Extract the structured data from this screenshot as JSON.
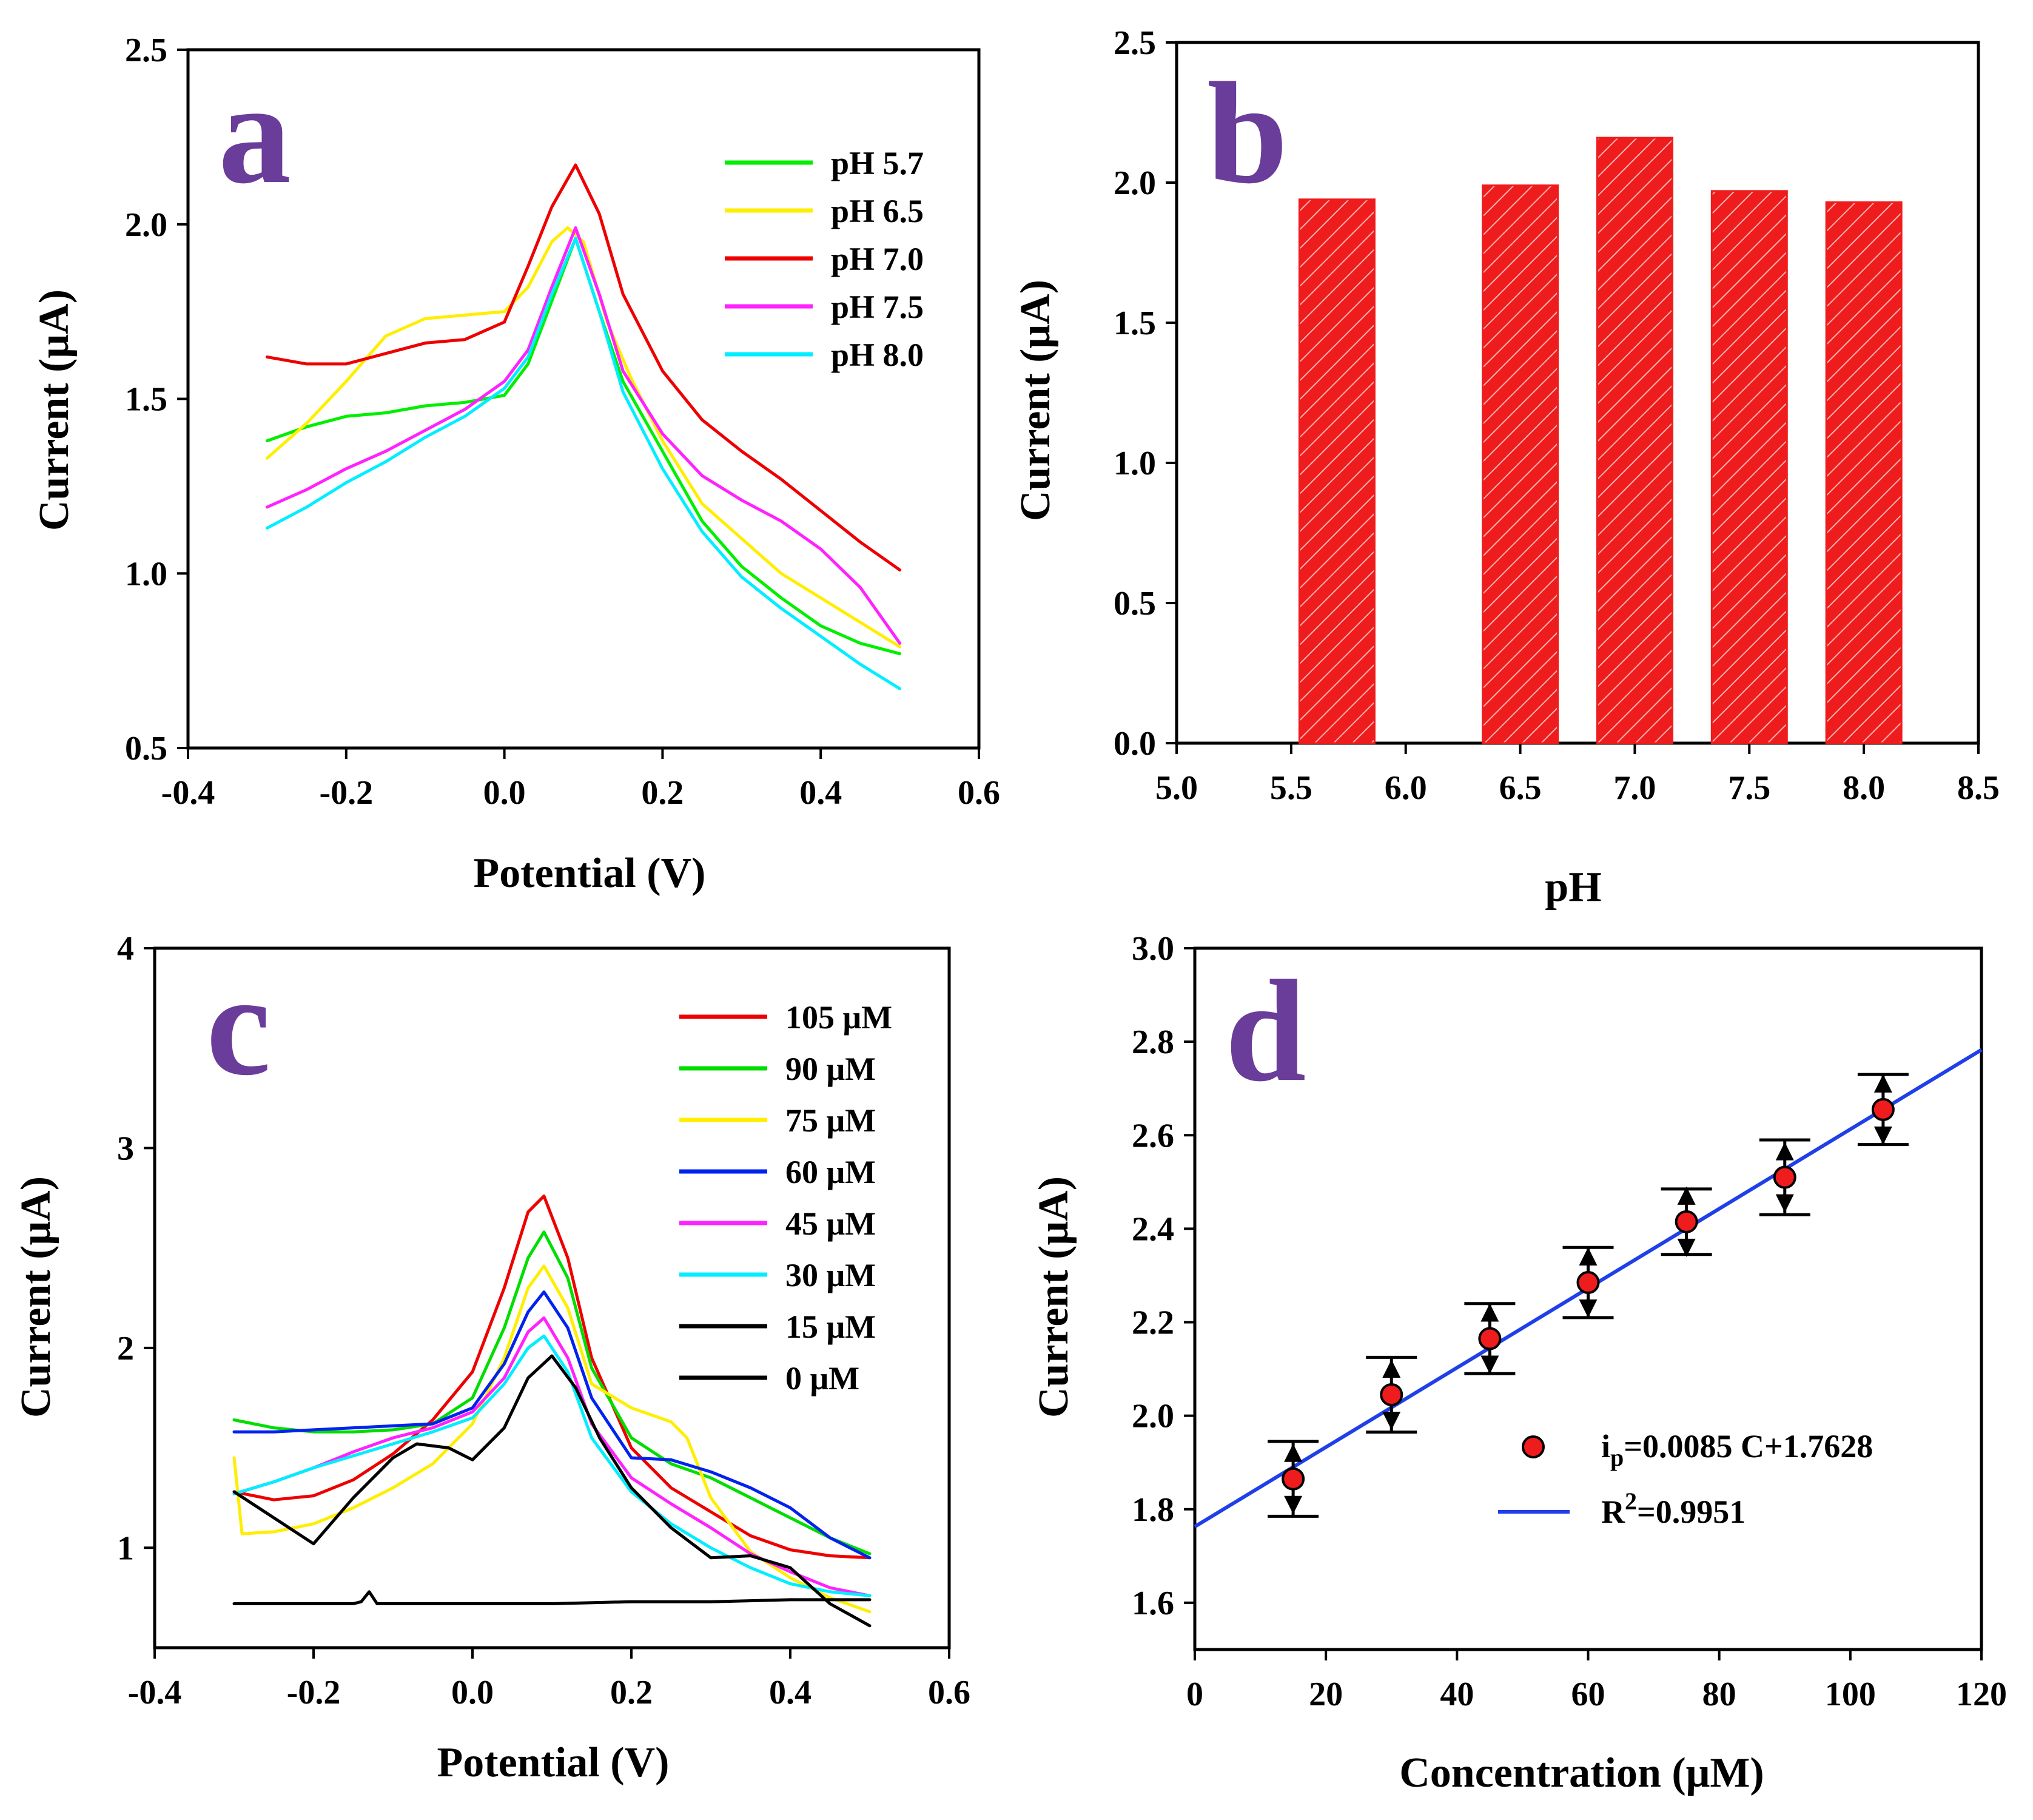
{
  "chart_data": [
    {
      "panel": "a",
      "type": "line",
      "xlabel": "Potential (V)",
      "ylabel": "Current (μA)",
      "xlim": [
        -0.4,
        0.6
      ],
      "ylim": [
        0.5,
        2.5
      ],
      "xticks": [
        "-0.4",
        "-0.2",
        "0.0",
        "0.2",
        "0.4",
        "0.6"
      ],
      "yticks": [
        "0.5",
        "1.0",
        "1.5",
        "2.0",
        "2.5"
      ],
      "legend_position": "top-right",
      "series": [
        {
          "name": "pH 5.7",
          "color": "#00ee00",
          "x": [
            -0.3,
            -0.25,
            -0.2,
            -0.15,
            -0.1,
            -0.05,
            0.0,
            0.03,
            0.06,
            0.09,
            0.12,
            0.15,
            0.2,
            0.25,
            0.3,
            0.35,
            0.4,
            0.45,
            0.5
          ],
          "y": [
            1.38,
            1.42,
            1.45,
            1.46,
            1.48,
            1.49,
            1.51,
            1.6,
            1.78,
            1.96,
            1.75,
            1.55,
            1.35,
            1.15,
            1.02,
            0.93,
            0.85,
            0.8,
            0.77
          ]
        },
        {
          "name": "pH 6.5",
          "color": "#ffee00",
          "x": [
            -0.3,
            -0.25,
            -0.2,
            -0.15,
            -0.1,
            -0.05,
            0.0,
            0.03,
            0.06,
            0.08,
            0.1,
            0.13,
            0.16,
            0.2,
            0.25,
            0.3,
            0.35,
            0.4,
            0.45,
            0.5
          ],
          "y": [
            1.33,
            1.43,
            1.55,
            1.68,
            1.73,
            1.74,
            1.75,
            1.82,
            1.95,
            1.99,
            1.95,
            1.72,
            1.56,
            1.38,
            1.2,
            1.1,
            1.0,
            0.93,
            0.86,
            0.79
          ]
        },
        {
          "name": "pH 7.0",
          "color": "#ee0000",
          "x": [
            -0.3,
            -0.25,
            -0.2,
            -0.15,
            -0.1,
            -0.05,
            0.0,
            0.03,
            0.06,
            0.09,
            0.12,
            0.15,
            0.2,
            0.25,
            0.3,
            0.35,
            0.4,
            0.45,
            0.5
          ],
          "y": [
            1.62,
            1.6,
            1.6,
            1.63,
            1.66,
            1.67,
            1.72,
            1.88,
            2.05,
            2.17,
            2.03,
            1.8,
            1.58,
            1.44,
            1.35,
            1.27,
            1.18,
            1.09,
            1.01
          ]
        },
        {
          "name": "pH 7.5",
          "color": "#ff22ff",
          "x": [
            -0.3,
            -0.25,
            -0.2,
            -0.15,
            -0.1,
            -0.05,
            0.0,
            0.03,
            0.06,
            0.09,
            0.12,
            0.15,
            0.2,
            0.25,
            0.3,
            0.35,
            0.4,
            0.45,
            0.5
          ],
          "y": [
            1.19,
            1.24,
            1.3,
            1.35,
            1.41,
            1.47,
            1.55,
            1.64,
            1.82,
            1.99,
            1.8,
            1.58,
            1.4,
            1.28,
            1.21,
            1.15,
            1.07,
            0.96,
            0.8
          ]
        },
        {
          "name": "pH 8.0",
          "color": "#00eeff",
          "x": [
            -0.3,
            -0.25,
            -0.2,
            -0.15,
            -0.1,
            -0.05,
            0.0,
            0.03,
            0.06,
            0.09,
            0.12,
            0.15,
            0.2,
            0.25,
            0.3,
            0.35,
            0.4,
            0.45,
            0.5
          ],
          "y": [
            1.13,
            1.19,
            1.26,
            1.32,
            1.39,
            1.45,
            1.53,
            1.62,
            1.8,
            1.96,
            1.75,
            1.52,
            1.3,
            1.12,
            0.99,
            0.9,
            0.82,
            0.74,
            0.67
          ]
        }
      ]
    },
    {
      "panel": "b",
      "type": "bar",
      "xlabel": "pH",
      "ylabel": "Current (μA)",
      "xlim": [
        5.0,
        8.5
      ],
      "ylim": [
        0.0,
        2.5
      ],
      "xticks": [
        "5.0",
        "5.5",
        "6.0",
        "6.5",
        "7.0",
        "7.5",
        "8.0",
        "8.5"
      ],
      "yticks": [
        "0.0",
        "0.5",
        "1.0",
        "1.5",
        "2.0",
        "2.5"
      ],
      "bar_color": "#ee1c1c",
      "categories": [
        5.7,
        6.5,
        7.0,
        7.5,
        8.0
      ],
      "values": [
        1.94,
        1.99,
        2.16,
        1.97,
        1.93
      ]
    },
    {
      "panel": "c",
      "type": "line",
      "xlabel": "Potential (V)",
      "ylabel": "Current (μA)",
      "xlim": [
        -0.4,
        0.6
      ],
      "ylim": [
        0.5,
        4
      ],
      "xticks": [
        "-0.4",
        "-0.2",
        "0.0",
        "0.2",
        "0.4",
        "0.6"
      ],
      "yticks": [
        "1",
        "2",
        "3",
        "4"
      ],
      "legend_position": "top-right",
      "series": [
        {
          "name": "105 μM",
          "color": "#ee0000",
          "x": [
            -0.3,
            -0.25,
            -0.2,
            -0.15,
            -0.1,
            -0.05,
            0.0,
            0.04,
            0.07,
            0.09,
            0.12,
            0.15,
            0.2,
            0.25,
            0.3,
            0.35,
            0.4,
            0.45,
            0.5
          ],
          "y": [
            1.28,
            1.24,
            1.26,
            1.34,
            1.47,
            1.64,
            1.88,
            2.3,
            2.68,
            2.76,
            2.45,
            1.95,
            1.5,
            1.3,
            1.18,
            1.06,
            0.99,
            0.96,
            0.95
          ]
        },
        {
          "name": "90 μM",
          "color": "#00dd00",
          "x": [
            -0.3,
            -0.25,
            -0.2,
            -0.15,
            -0.1,
            -0.05,
            0.0,
            0.04,
            0.07,
            0.09,
            0.12,
            0.15,
            0.2,
            0.25,
            0.3,
            0.35,
            0.4,
            0.45,
            0.5
          ],
          "y": [
            1.64,
            1.6,
            1.58,
            1.58,
            1.59,
            1.62,
            1.75,
            2.1,
            2.45,
            2.58,
            2.35,
            1.9,
            1.55,
            1.42,
            1.35,
            1.25,
            1.15,
            1.05,
            0.97
          ]
        },
        {
          "name": "75 μM",
          "color": "#ffee00",
          "x": [
            -0.3,
            -0.29,
            -0.25,
            -0.2,
            -0.15,
            -0.1,
            -0.05,
            0.0,
            0.04,
            0.07,
            0.09,
            0.12,
            0.15,
            0.2,
            0.25,
            0.27,
            0.3,
            0.35,
            0.4,
            0.45,
            0.5
          ],
          "y": [
            1.45,
            1.07,
            1.08,
            1.12,
            1.2,
            1.3,
            1.42,
            1.62,
            1.95,
            2.3,
            2.41,
            2.2,
            1.82,
            1.7,
            1.63,
            1.55,
            1.25,
            0.98,
            0.85,
            0.75,
            0.68
          ]
        },
        {
          "name": "60 μM",
          "color": "#0022ee",
          "x": [
            -0.3,
            -0.25,
            -0.2,
            -0.15,
            -0.1,
            -0.05,
            0.0,
            0.04,
            0.07,
            0.09,
            0.12,
            0.15,
            0.2,
            0.25,
            0.3,
            0.35,
            0.4,
            0.45,
            0.5
          ],
          "y": [
            1.58,
            1.58,
            1.59,
            1.6,
            1.61,
            1.62,
            1.7,
            1.92,
            2.18,
            2.28,
            2.1,
            1.75,
            1.45,
            1.44,
            1.38,
            1.3,
            1.2,
            1.05,
            0.95
          ]
        },
        {
          "name": "45 μM",
          "color": "#ff22ff",
          "x": [
            -0.3,
            -0.25,
            -0.2,
            -0.15,
            -0.1,
            -0.05,
            0.0,
            0.04,
            0.07,
            0.09,
            0.12,
            0.15,
            0.2,
            0.25,
            0.3,
            0.35,
            0.4,
            0.45,
            0.5
          ],
          "y": [
            1.27,
            1.33,
            1.4,
            1.48,
            1.55,
            1.6,
            1.68,
            1.85,
            2.08,
            2.15,
            1.95,
            1.62,
            1.35,
            1.22,
            1.1,
            0.97,
            0.88,
            0.8,
            0.76
          ]
        },
        {
          "name": "30 μM",
          "color": "#00eeff",
          "x": [
            -0.3,
            -0.25,
            -0.2,
            -0.15,
            -0.1,
            -0.05,
            0.0,
            0.04,
            0.07,
            0.09,
            0.12,
            0.15,
            0.2,
            0.25,
            0.3,
            0.35,
            0.4,
            0.45,
            0.5
          ],
          "y": [
            1.27,
            1.33,
            1.4,
            1.46,
            1.52,
            1.58,
            1.65,
            1.82,
            2.0,
            2.06,
            1.88,
            1.55,
            1.28,
            1.12,
            1.0,
            0.9,
            0.82,
            0.78,
            0.76
          ]
        },
        {
          "name": "15 μM",
          "color": "#000000",
          "x": [
            -0.3,
            -0.25,
            -0.2,
            -0.15,
            -0.14,
            -0.13,
            -0.12,
            -0.1,
            0.0,
            0.1,
            0.2,
            0.3,
            0.4,
            0.5
          ],
          "y": [
            0.72,
            0.72,
            0.72,
            0.72,
            0.73,
            0.78,
            0.72,
            0.72,
            0.72,
            0.72,
            0.73,
            0.73,
            0.74,
            0.74
          ]
        },
        {
          "name": "0 μM",
          "color": "#000000",
          "x": [
            -0.3,
            -0.25,
            -0.2,
            -0.15,
            -0.1,
            -0.07,
            -0.03,
            0.0,
            0.04,
            0.07,
            0.1,
            0.13,
            0.16,
            0.2,
            0.25,
            0.3,
            0.35,
            0.4,
            0.45,
            0.5
          ],
          "y": [
            1.28,
            1.15,
            1.02,
            1.25,
            1.45,
            1.52,
            1.5,
            1.44,
            1.6,
            1.85,
            1.96,
            1.8,
            1.55,
            1.3,
            1.1,
            0.95,
            0.96,
            0.9,
            0.72,
            0.61
          ]
        }
      ]
    },
    {
      "panel": "d",
      "type": "scatter",
      "xlabel": "Concentration (μM)",
      "ylabel": "Current (μA)",
      "xlim": [
        0,
        120
      ],
      "ylim": [
        1.5,
        3.0
      ],
      "xticks": [
        "0",
        "20",
        "40",
        "60",
        "80",
        "100",
        "120"
      ],
      "yticks": [
        "1.6",
        "1.8",
        "2.0",
        "2.2",
        "2.4",
        "2.6",
        "2.8",
        "3.0"
      ],
      "x": [
        15,
        30,
        45,
        60,
        75,
        90,
        105
      ],
      "y": [
        1.865,
        2.045,
        2.165,
        2.285,
        2.415,
        2.51,
        2.655
      ],
      "error": [
        0.08,
        0.08,
        0.075,
        0.075,
        0.07,
        0.08,
        0.075
      ],
      "point_color": "#ee1c1c",
      "fit": {
        "slope": 0.0085,
        "intercept": 1.7628,
        "x_range": [
          0,
          120
        ],
        "color": "#1f3fe8"
      },
      "legend": {
        "points_prefix": "i",
        "points_subscript": "p",
        "points_suffix": "=0.0085 C+1.7628",
        "line_prefix": "R",
        "line_superscript": "2",
        "line_suffix": "=0.9951"
      }
    }
  ]
}
